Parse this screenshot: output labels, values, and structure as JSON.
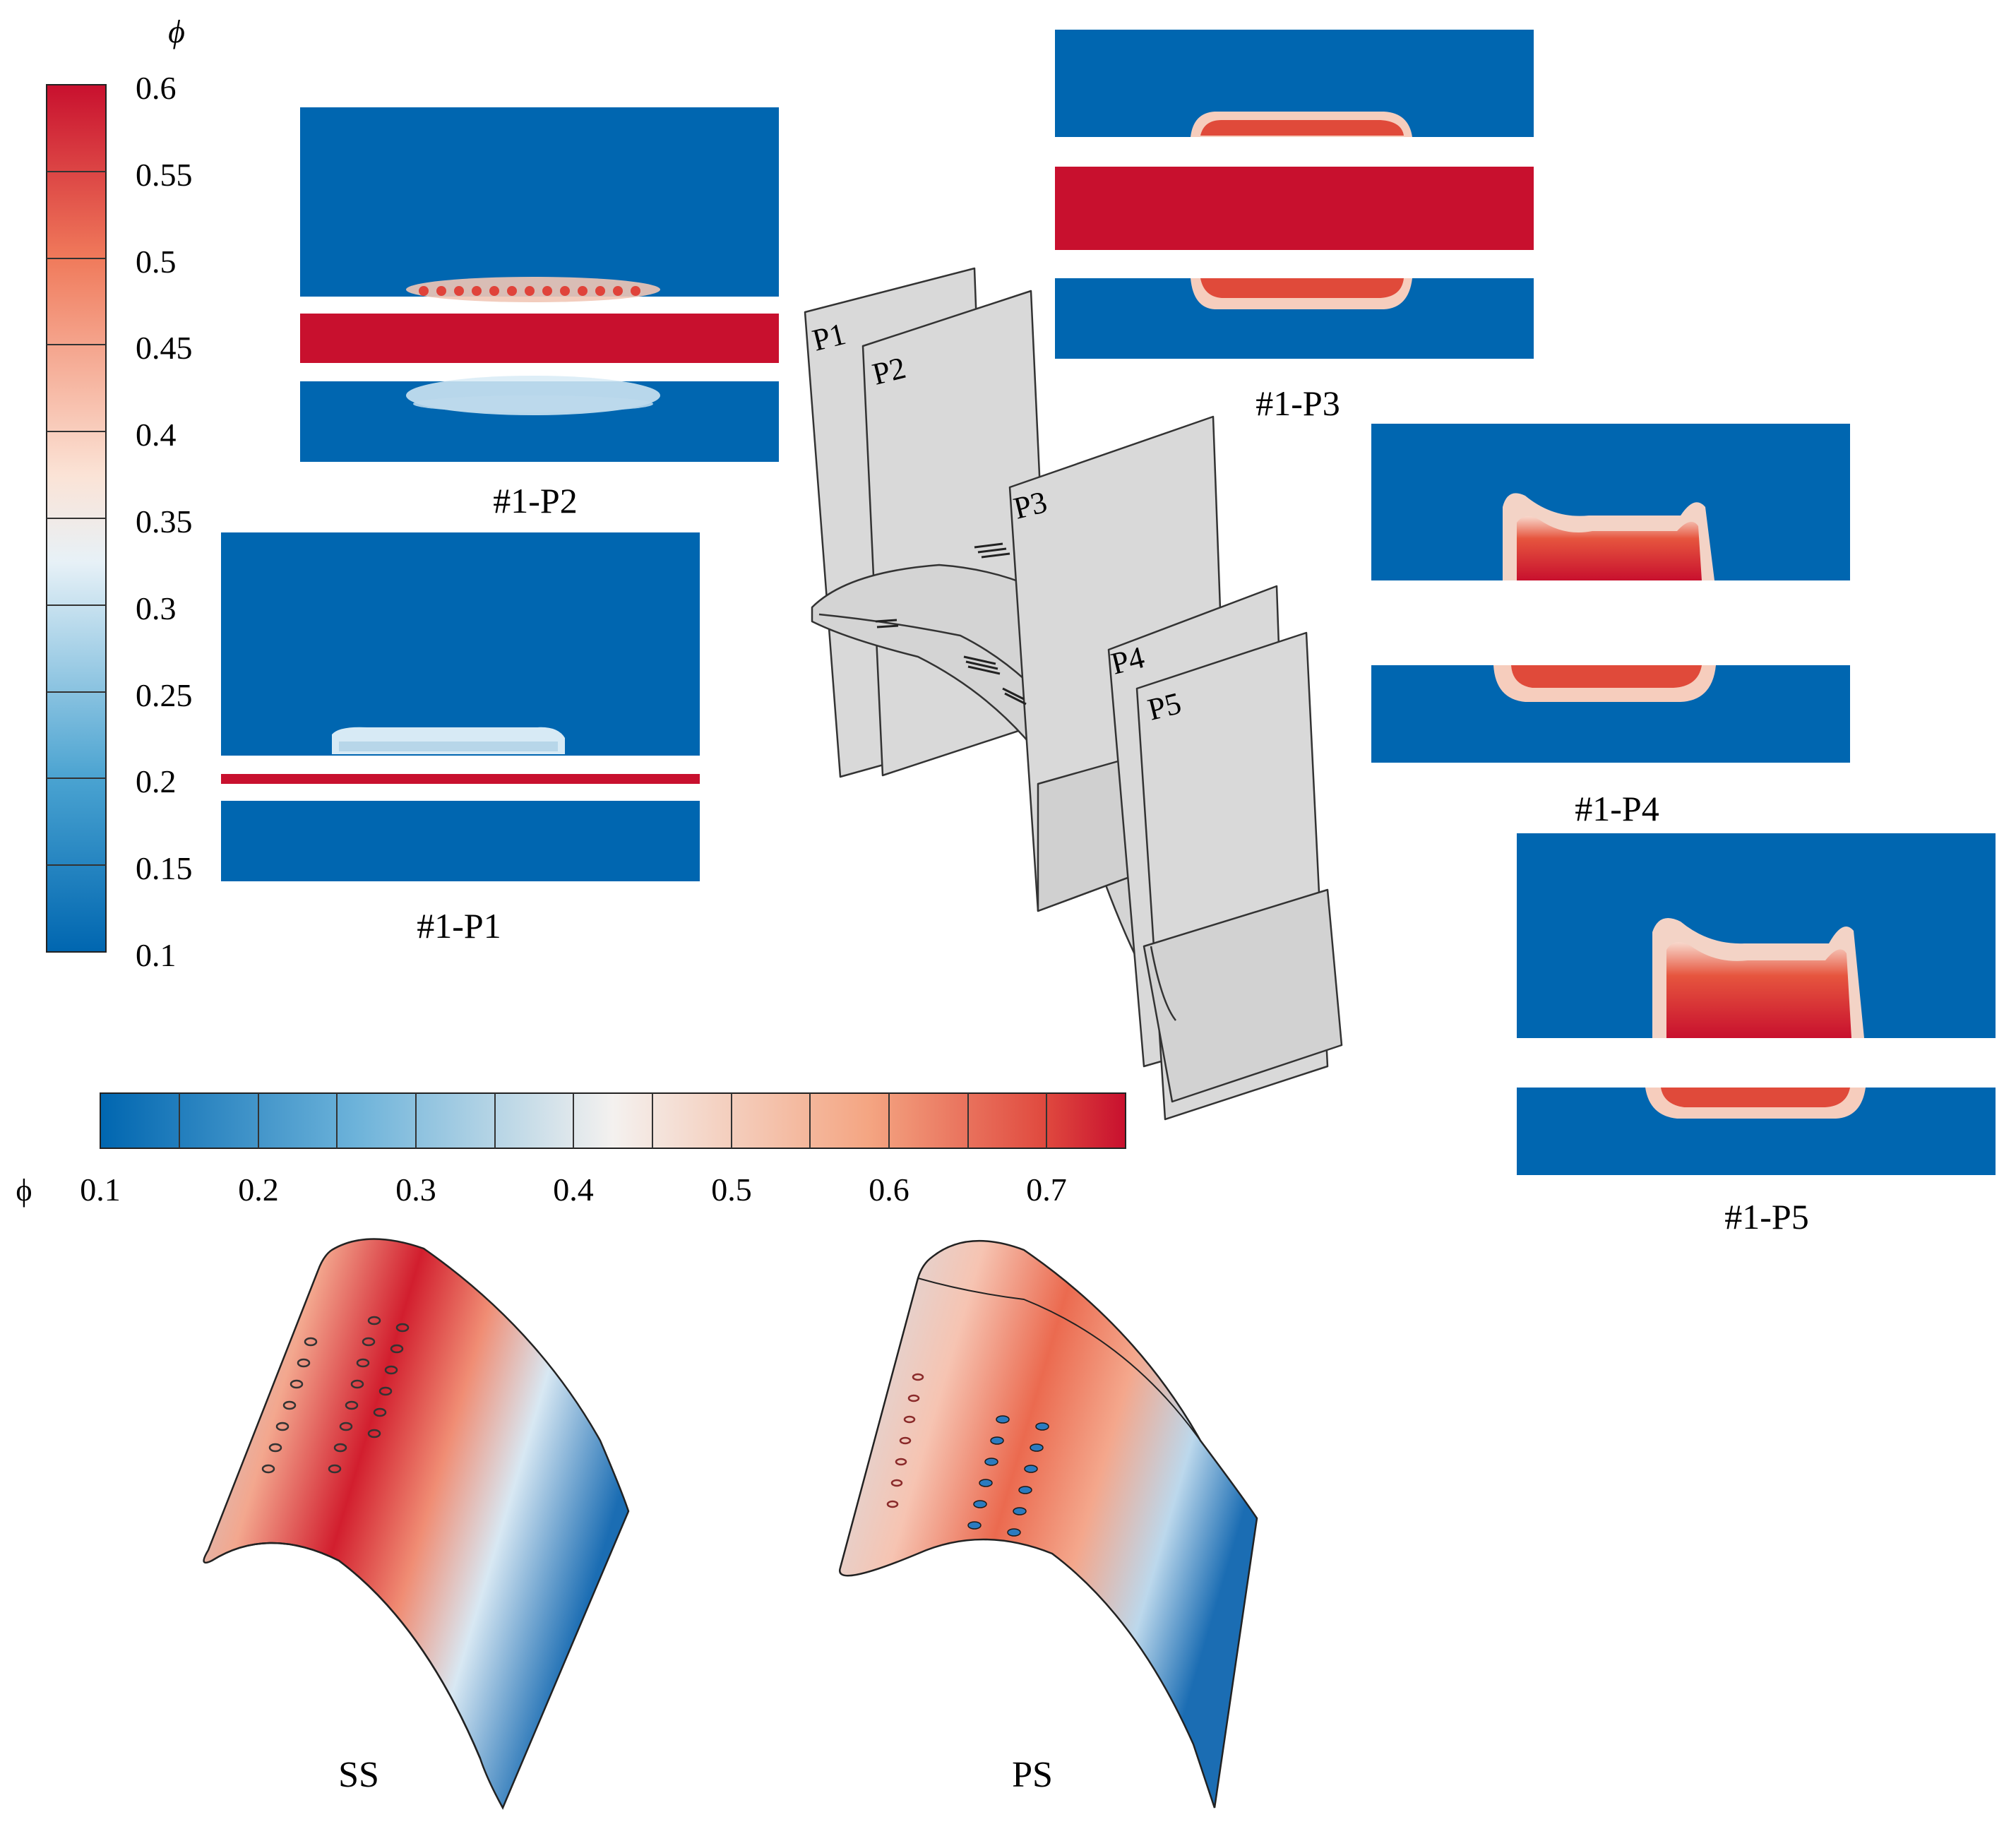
{
  "vertical_colorbar": {
    "title": "ϕ",
    "ticks": [
      "0.6",
      "0.55",
      "0.5",
      "0.45",
      "0.4",
      "0.35",
      "0.3",
      "0.25",
      "0.2",
      "0.15",
      "0.1"
    ]
  },
  "horizontal_colorbar": {
    "title": "ϕ",
    "ticks": [
      "0.1",
      "0.2",
      "0.3",
      "0.4",
      "0.5",
      "0.6",
      "0.7"
    ]
  },
  "panels": {
    "p1": "#1-P1",
    "p2": "#1-P2",
    "p3": "#1-P3",
    "p4": "#1-P4",
    "p5": "#1-P5"
  },
  "plane_tags": [
    "P1",
    "P2",
    "P3",
    "P4",
    "P5"
  ],
  "surfaces": {
    "ss": "SS",
    "ps": "PS"
  },
  "colors": {
    "field_blue": "#0066b0",
    "jet_red": "#c8102e",
    "plane_gray": "#d9d9d9"
  }
}
